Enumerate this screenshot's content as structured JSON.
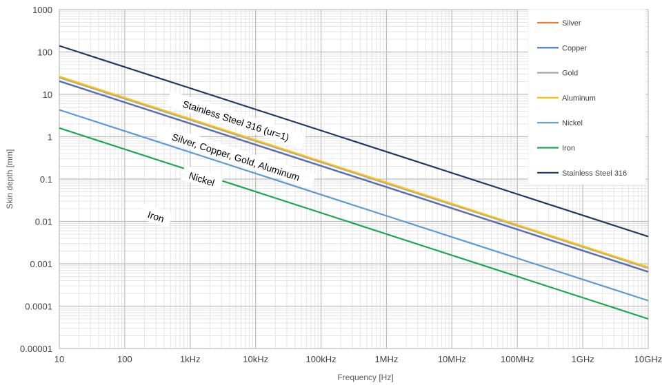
{
  "chart_data": {
    "type": "line",
    "title": "",
    "xlabel": "Frequency [Hz]",
    "ylabel": "Skin depth [mm]",
    "x_scale": "log",
    "y_scale": "log",
    "xlim": [
      10,
      10000000000
    ],
    "ylim": [
      1e-05,
      1000
    ],
    "grid": true,
    "legend_position": "top-right",
    "x_tick_labels": [
      "10",
      "100",
      "1kHz",
      "10kHz",
      "100kHz",
      "1MHz",
      "10MHz",
      "100MHz",
      "1GHz",
      "10GHz"
    ],
    "y_tick_labels": [
      "0.00001",
      "0.0001",
      "0.001",
      "0.01",
      "0.1",
      "1",
      "10",
      "100",
      "1000"
    ],
    "x": [
      10,
      10000000000
    ],
    "series": [
      {
        "name": "Silver",
        "color": "#ED7D31",
        "values": [
          20.3,
          0.00064
        ]
      },
      {
        "name": "Copper",
        "color": "#4472C4",
        "values": [
          20.6,
          0.00065
        ]
      },
      {
        "name": "Gold",
        "color": "#A5A5A5",
        "values": [
          24.8,
          0.00079
        ]
      },
      {
        "name": "Aluminum",
        "color": "#FFC000",
        "values": [
          26.4,
          0.00083
        ]
      },
      {
        "name": "Nickel",
        "color": "#5B9BD5",
        "values": [
          4.3,
          0.000135
        ]
      },
      {
        "name": "Iron",
        "color": "#18A94B",
        "values": [
          1.6,
          5e-05
        ]
      },
      {
        "name": "Stainless Steel 316",
        "color": "#1F3864",
        "values": [
          140,
          0.0044
        ]
      }
    ],
    "annotations": [
      {
        "text": "Stainless Steel 316 (ur=1)",
        "x": 5000,
        "y": 2.4
      },
      {
        "text": "Silver, Copper, Gold, Aluminum",
        "x": 5000,
        "y": 0.33
      },
      {
        "text": "Nickel",
        "x": 1500,
        "y": 0.1
      },
      {
        "text": "Iron",
        "x": 300,
        "y": 0.013
      }
    ]
  }
}
